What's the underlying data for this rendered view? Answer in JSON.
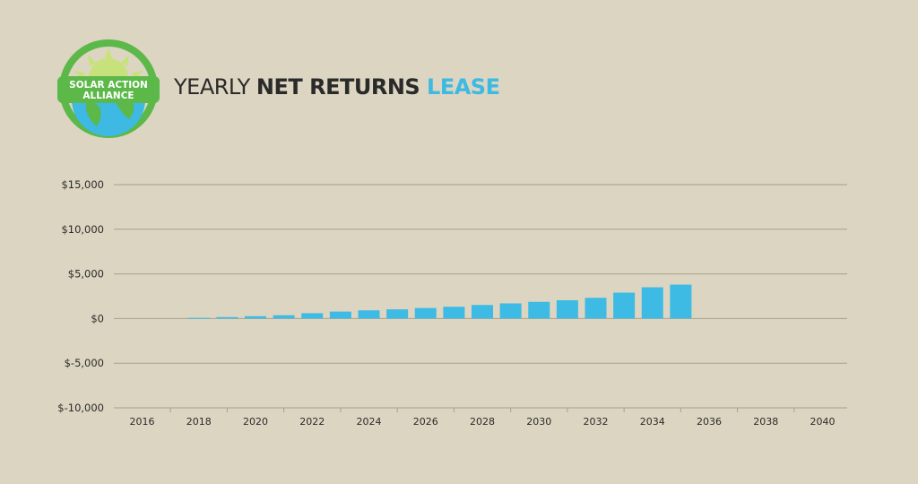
{
  "brand": {
    "name_line1": "SOLAR ACTION",
    "name_line2": "ALLIANCE",
    "colors": {
      "ring": "#5cb848",
      "globe": "#3db9e3",
      "land": "#5cb848",
      "sun": "#c7e27b"
    }
  },
  "title": {
    "part1": "YEARLY ",
    "part2": "NET RETURNS",
    "part3": " LEASE"
  },
  "colors": {
    "bar": "#3dbbe4",
    "grid": "#a8a08c",
    "background": "#dcd5c1",
    "title_accent": "#3db9e3"
  },
  "chart_data": {
    "type": "bar",
    "title": "YEARLY NET RETURNS LEASE",
    "xlabel": "",
    "ylabel": "",
    "ylim": [
      -10000,
      15000
    ],
    "y_ticks": [
      15000,
      10000,
      5000,
      0,
      -5000,
      -10000
    ],
    "y_tick_labels": [
      "$15,000",
      "$10,000",
      "$5,000",
      "$0",
      "$-5,000",
      "$-10,000"
    ],
    "x_tick_labels": [
      "2016",
      "2018",
      "2020",
      "2022",
      "2024",
      "2026",
      "2028",
      "2030",
      "2032",
      "2034",
      "2036",
      "2038",
      "2040"
    ],
    "categories": [
      "2018",
      "2019",
      "2020",
      "2021",
      "2022",
      "2023",
      "2024",
      "2025",
      "2026",
      "2027",
      "2028",
      "2029",
      "2030",
      "2031",
      "2032",
      "2033",
      "2034",
      "2035"
    ],
    "values": [
      80,
      160,
      260,
      370,
      600,
      780,
      920,
      1030,
      1180,
      1320,
      1520,
      1700,
      1870,
      2050,
      2320,
      2900,
      3500,
      3800
    ],
    "grid": true
  }
}
